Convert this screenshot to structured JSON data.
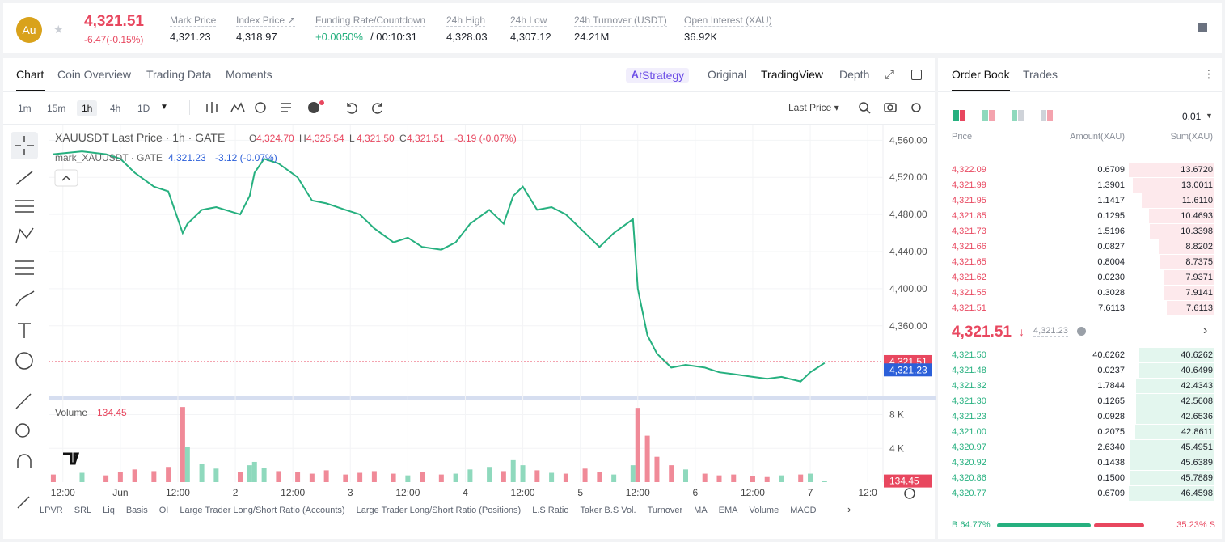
{
  "header": {
    "icon": "Au",
    "price": "4,321.51",
    "change": "-6.47(-0.15%)",
    "stats": [
      {
        "label": "Mark Price",
        "value": "4,321.23"
      },
      {
        "label": "Index Price ↗",
        "value": "4,318.97"
      },
      {
        "label": "Funding Rate/Countdown",
        "value": "+0.0050%",
        "extra": "/ 00:10:31"
      },
      {
        "label": "24h High",
        "value": "4,328.03"
      },
      {
        "label": "24h Low",
        "value": "4,307.12"
      },
      {
        "label": "24h Turnover (USDT)",
        "value": "24.21M"
      },
      {
        "label": "Open Interest (XAU)",
        "value": "36.92K"
      }
    ]
  },
  "tabs": [
    "Chart",
    "Coin Overview",
    "Trading Data",
    "Moments"
  ],
  "view_tabs": [
    "Strategy",
    "Original",
    "TradingView",
    "Depth"
  ],
  "intervals": [
    "1m",
    "15m",
    "1h",
    "4h",
    "1D"
  ],
  "price_type": "Last Price",
  "legend": {
    "title": "XAUUSDT Last Price · 1h · GATE",
    "ohlc": [
      {
        "k": "O",
        "v": "4,324.70"
      },
      {
        "k": "H",
        "v": "4,325.54"
      },
      {
        "k": "L",
        "v": "4,321.50"
      },
      {
        "k": "C",
        "v": "4,321.51"
      }
    ],
    "change": "-3.19 (-0.07%)",
    "mark_title": "mark_XAUUSDT · GATE",
    "mark_price": "4,321.23",
    "mark_change": "-3.12 (-0.07%)",
    "volume_title": "Volume",
    "volume_value": "134.45"
  },
  "bottom_tabs": [
    "LPVR",
    "SRL",
    "Liq",
    "Basis",
    "OI",
    "Large Trader Long/Short Ratio (Accounts)",
    "Large Trader Long/Short Ratio (Positions)",
    "L.S Ratio",
    "Taker B.S Vol.",
    "Turnover",
    "MA",
    "EMA",
    "Volume",
    "MACD"
  ],
  "chart_data": {
    "type": "line",
    "x": [
      0,
      6,
      11,
      14,
      17,
      21,
      24,
      27,
      28,
      31,
      34,
      39,
      41,
      42,
      44,
      47,
      51,
      54,
      57,
      61,
      64,
      67,
      71,
      74,
      77,
      81,
      84,
      87,
      91,
      94,
      96,
      98,
      101,
      104,
      107,
      111,
      114,
      117,
      121,
      122,
      124,
      126,
      129,
      132,
      136,
      139,
      142,
      146,
      149,
      152,
      156,
      158,
      161
    ],
    "series": [
      {
        "name": "Last Price",
        "color": "#26b07f",
        "values": [
          4545,
          4548,
          4545,
          4540,
          4525,
          4510,
          4505,
          4460,
          4470,
          4485,
          4488,
          4480,
          4500,
          4525,
          4540,
          4535,
          4520,
          4495,
          4492,
          4485,
          4480,
          4465,
          4450,
          4455,
          4445,
          4442,
          4450,
          4470,
          4485,
          4470,
          4500,
          4510,
          4485,
          4488,
          4480,
          4460,
          4445,
          4460,
          4475,
          4400,
          4350,
          4330,
          4315,
          4318,
          4315,
          4310,
          4308,
          4305,
          4303,
          4305,
          4300,
          4310,
          4320
        ]
      },
      {
        "name": "Volume",
        "color": "#f08a98",
        "values": [
          900,
          1100,
          800,
          1200,
          1500,
          1300,
          1800,
          8900,
          4200,
          2200,
          1600,
          1200,
          2000,
          2400,
          1700,
          1300,
          1200,
          1000,
          1400,
          900,
          1100,
          1300,
          1000,
          800,
          1200,
          900,
          1000,
          1500,
          1800,
          1300,
          2600,
          2000,
          1400,
          1100,
          1000,
          1600,
          1200,
          900,
          2000,
          8800,
          5500,
          3000,
          2000,
          1500,
          1000,
          800,
          900,
          700,
          600,
          800,
          900,
          1000,
          134.45
        ]
      }
    ],
    "xlim": [
      -1,
      172
    ],
    "xticks": [
      {
        "value": 2,
        "label": "12:00"
      },
      {
        "value": 14,
        "label": "Jun"
      },
      {
        "value": 26,
        "label": "12:00"
      },
      {
        "value": 38,
        "label": "2"
      },
      {
        "value": 50,
        "label": "12:00"
      },
      {
        "value": 62,
        "label": "3"
      },
      {
        "value": 74,
        "label": "12:00"
      },
      {
        "value": 86,
        "label": "4"
      },
      {
        "value": 98,
        "label": "12:00"
      },
      {
        "value": 110,
        "label": "5"
      },
      {
        "value": 122,
        "label": "12:00"
      },
      {
        "value": 134,
        "label": "6"
      },
      {
        "value": 146,
        "label": "12:00"
      },
      {
        "value": 158,
        "label": "7"
      },
      {
        "value": 170,
        "label": "12:0"
      }
    ],
    "ylim": [
      4284,
      4576
    ],
    "yticks": [
      {
        "value": 4360,
        "label": "4,360.00"
      },
      {
        "value": 4400,
        "label": "4,400.00"
      },
      {
        "value": 4440,
        "label": "4,440.00"
      },
      {
        "value": 4480,
        "label": "4,480.00"
      },
      {
        "value": 4520,
        "label": "4,520.00"
      },
      {
        "value": 4560,
        "label": "4,560.00"
      }
    ],
    "y2lim": [
      0,
      9200
    ],
    "y2ticks": [
      {
        "value": 4000,
        "label": "4 K"
      },
      {
        "value": 8000,
        "label": "8 K"
      }
    ],
    "last_price": {
      "value": 4321.51,
      "label": "4,321.51",
      "color": "#e8475f"
    },
    "mark_price": {
      "value": 4321.23,
      "label": "4,321.23",
      "color": "#2b5fd9"
    },
    "last_volume": {
      "value": 134.45,
      "label": "134.45",
      "color": "#e8475f"
    },
    "grid": true
  },
  "order_book": {
    "tabs": [
      "Order Book",
      "Trades"
    ],
    "step": "0.01",
    "columns": [
      "Price",
      "Amount(XAU)",
      "Sum(XAU)"
    ],
    "asks": [
      {
        "price": "4,322.09",
        "amount": "0.6709",
        "sum": 13.672,
        "sum_label": "13.6720"
      },
      {
        "price": "4,321.99",
        "amount": "1.3901",
        "sum": 13.0011,
        "sum_label": "13.0011"
      },
      {
        "price": "4,321.95",
        "amount": "1.1417",
        "sum": 11.611,
        "sum_label": "11.6110"
      },
      {
        "price": "4,321.85",
        "amount": "0.1295",
        "sum": 10.4693,
        "sum_label": "10.4693"
      },
      {
        "price": "4,321.73",
        "amount": "1.5196",
        "sum": 10.3398,
        "sum_label": "10.3398"
      },
      {
        "price": "4,321.66",
        "amount": "0.0827",
        "sum": 8.8202,
        "sum_label": "8.8202"
      },
      {
        "price": "4,321.65",
        "amount": "0.8004",
        "sum": 8.7375,
        "sum_label": "8.7375"
      },
      {
        "price": "4,321.62",
        "amount": "0.0230",
        "sum": 7.9371,
        "sum_label": "7.9371"
      },
      {
        "price": "4,321.55",
        "amount": "0.3028",
        "sum": 7.9141,
        "sum_label": "7.9141"
      },
      {
        "price": "4,321.51",
        "amount": "7.6113",
        "sum": 7.6113,
        "sum_label": "7.6113"
      }
    ],
    "last": "4,321.51",
    "mark": "4,321.23",
    "bids": [
      {
        "price": "4,321.50",
        "amount": "40.6262",
        "sum": 40.6262,
        "sum_label": "40.6262"
      },
      {
        "price": "4,321.48",
        "amount": "0.0237",
        "sum": 40.6499,
        "sum_label": "40.6499"
      },
      {
        "price": "4,321.32",
        "amount": "1.7844",
        "sum": 42.4343,
        "sum_label": "42.4343"
      },
      {
        "price": "4,321.30",
        "amount": "0.1265",
        "sum": 42.5608,
        "sum_label": "42.5608"
      },
      {
        "price": "4,321.23",
        "amount": "0.0928",
        "sum": 42.6536,
        "sum_label": "42.6536"
      },
      {
        "price": "4,321.00",
        "amount": "0.2075",
        "sum": 42.8611,
        "sum_label": "42.8611"
      },
      {
        "price": "4,320.97",
        "amount": "2.6340",
        "sum": 45.4951,
        "sum_label": "45.4951"
      },
      {
        "price": "4,320.92",
        "amount": "0.1438",
        "sum": 45.6389,
        "sum_label": "45.6389"
      },
      {
        "price": "4,320.86",
        "amount": "0.1500",
        "sum": 45.7889,
        "sum_label": "45.7889"
      },
      {
        "price": "4,320.77",
        "amount": "0.6709",
        "sum": 46.4598,
        "sum_label": "46.4598"
      }
    ],
    "ratio": {
      "buy": 64.77,
      "buy_label": "B 64.77%",
      "sell": 35.23,
      "sell_label": "35.23% S"
    }
  }
}
